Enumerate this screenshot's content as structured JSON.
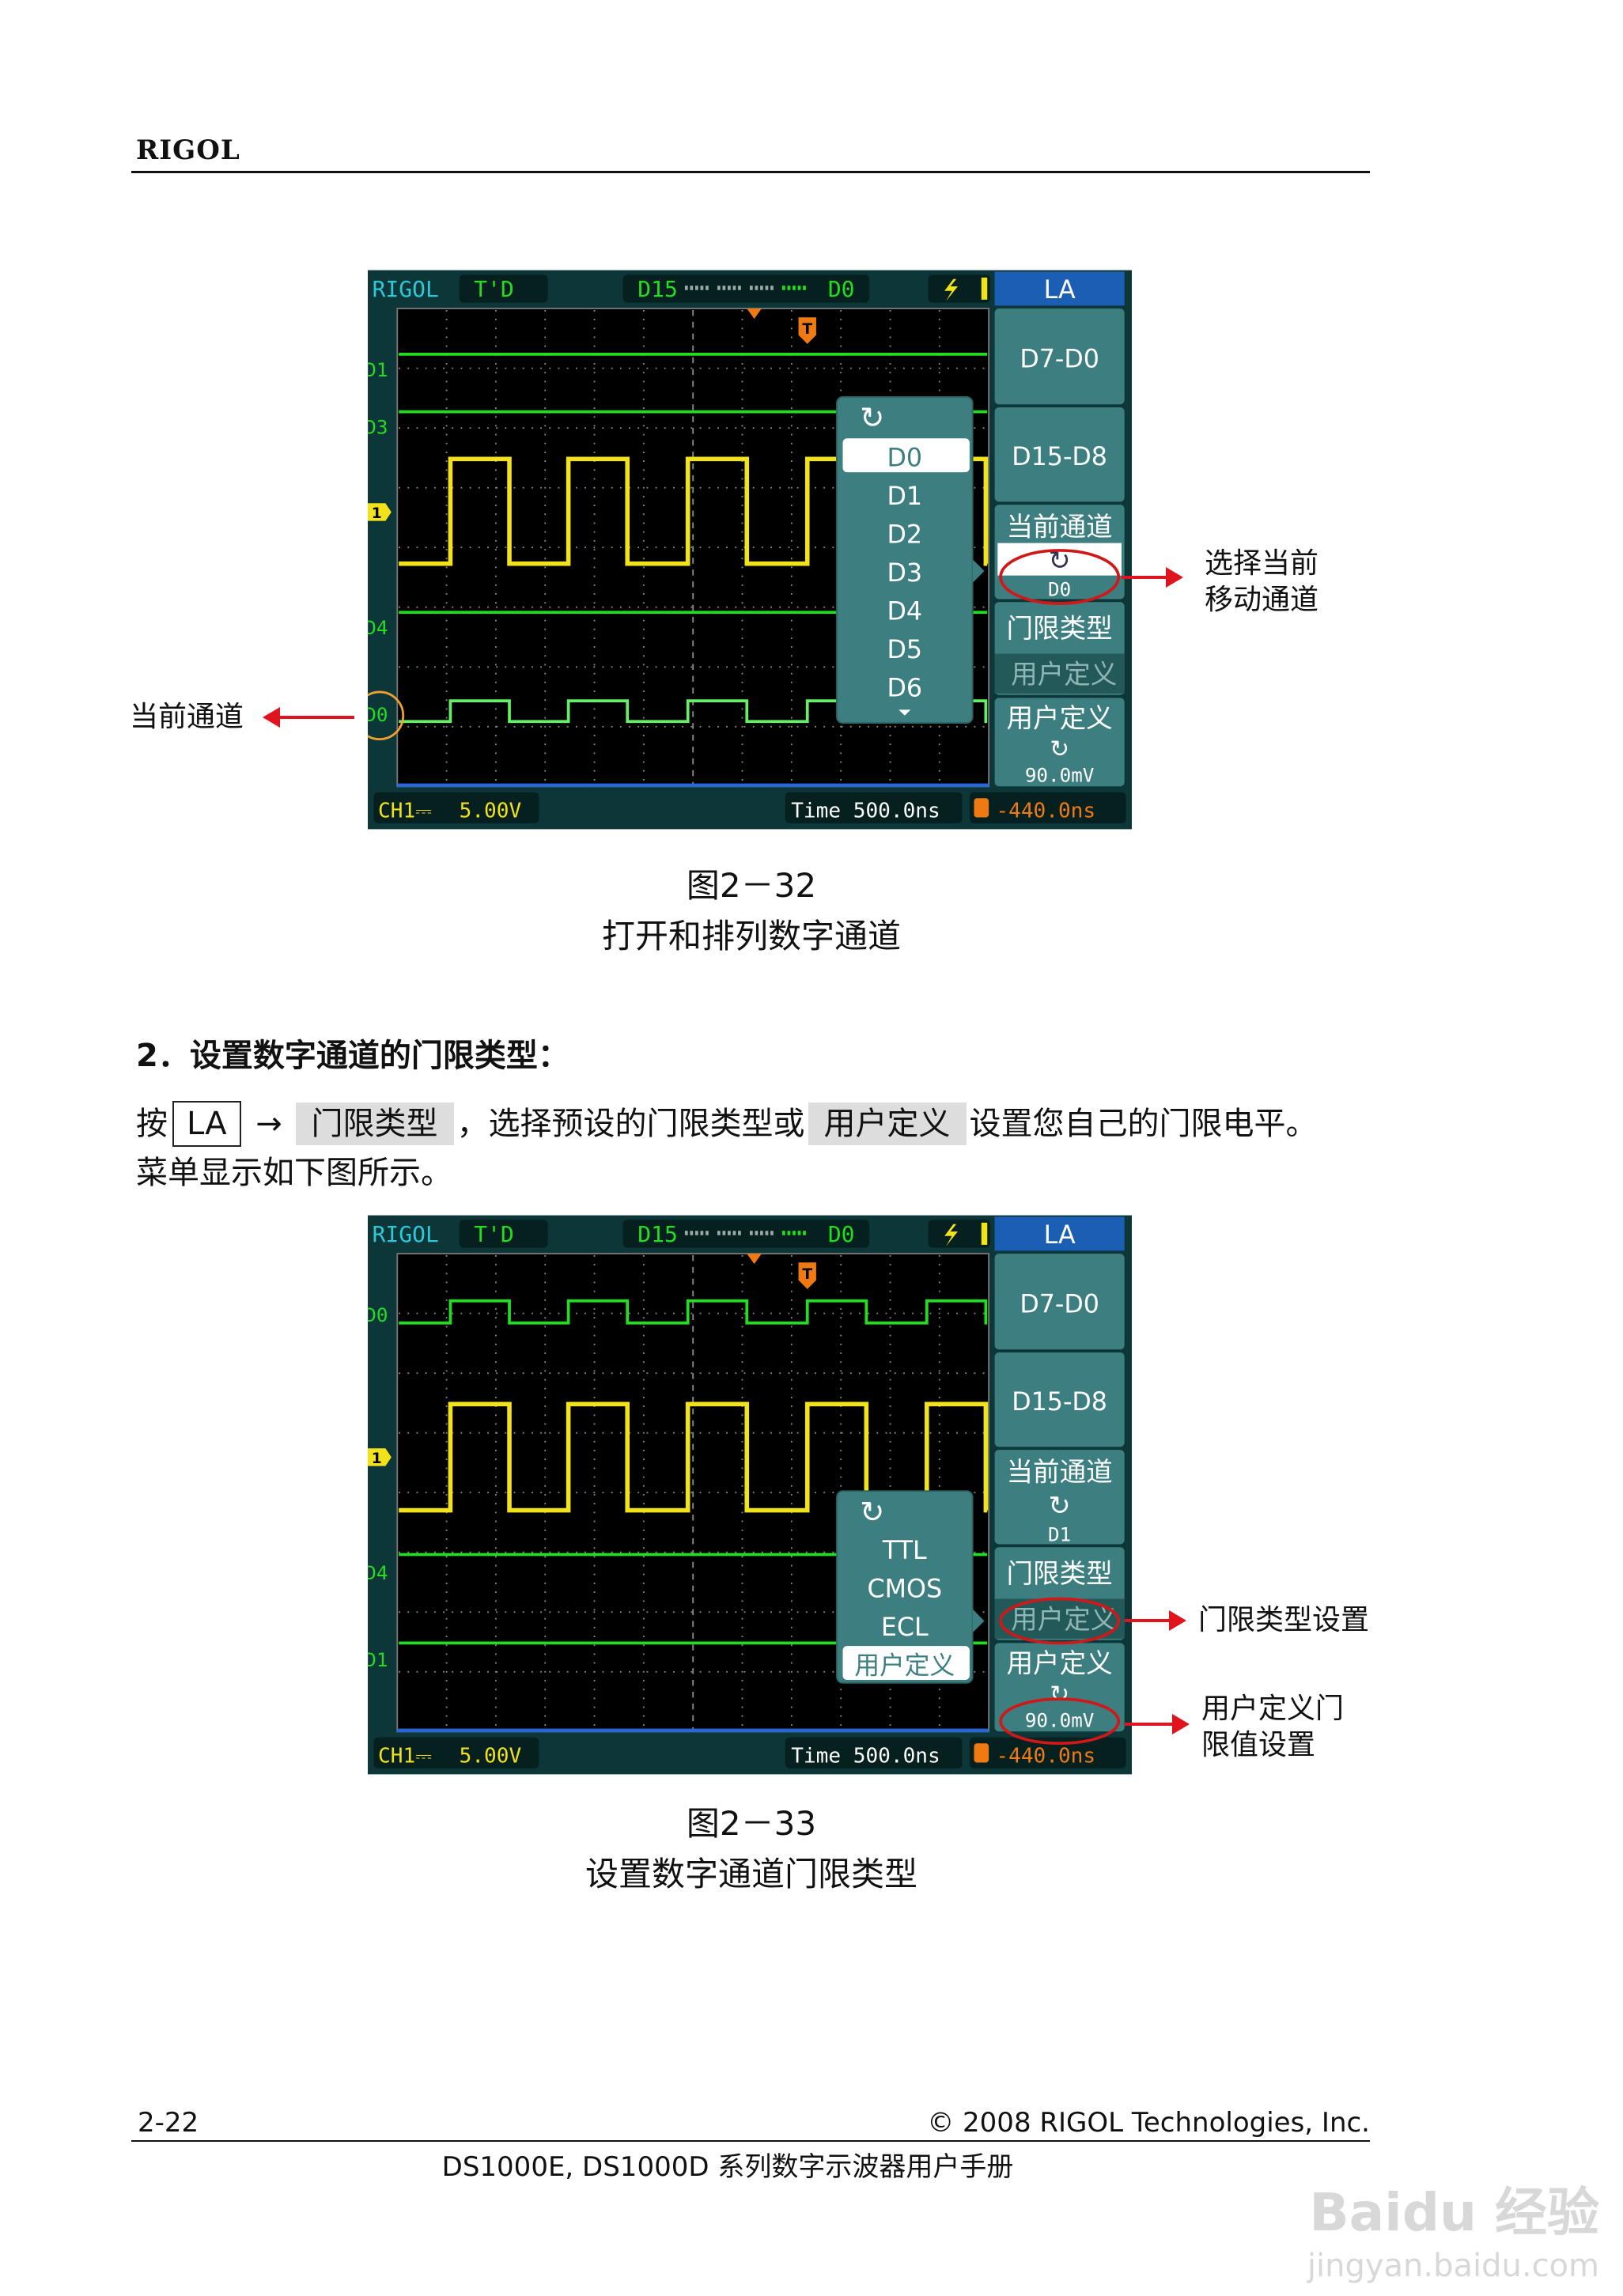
{
  "header": {
    "brand": "RIGOL"
  },
  "scope_common": {
    "brand": "RIGOL",
    "mode": "T'D",
    "ch_left": "D15",
    "ch_right": "D0",
    "menu_title": "LA",
    "btn_d7_d0": "D7-D0",
    "btn_d15_d8": "D15-D8",
    "btn_current_channel": "当前通道",
    "btn_threshold_type": "门限类型",
    "btn_user_defined": "用户定义",
    "ch1_label": "CH1",
    "ch1_scale": "5.00V",
    "time_label": "Time 500.0ns",
    "trigger_offset": "-440.0ns",
    "trigger_marker": "T",
    "ch1_marker": "1",
    "colors": {
      "digital": "#22dd22",
      "ch1": "#f2e21a",
      "menu": "#3d7f80",
      "title": "#1b5fb4",
      "trigger": "#f07a12",
      "highlight": "#d01818"
    }
  },
  "figures": [
    {
      "channel_labels": [
        "D1",
        "D3",
        "D4",
        "D0"
      ],
      "popup_items": [
        "D0",
        "D1",
        "D2",
        "D3",
        "D4",
        "D5",
        "D6"
      ],
      "popup_selected": 0,
      "current_channel_value": "D0",
      "threshold_value": "用户定义",
      "user_threshold_value": "90.0mV",
      "caption": "图2－32",
      "subtitle": "打开和排列数字通道",
      "annotations": [
        {
          "text": "选择当前\n移动通道"
        },
        {
          "text": "当前通道"
        }
      ]
    },
    {
      "channel_labels": [
        "D0",
        "D4",
        "D1"
      ],
      "popup_items": [
        "TTL",
        "CMOS",
        "ECL",
        "用户定义"
      ],
      "popup_selected": 3,
      "current_channel_value": "D1",
      "threshold_value": "用户定义",
      "user_threshold_value": "90.0mV",
      "caption": "图2－33",
      "subtitle": "设置数字通道门限类型",
      "annotations": [
        {
          "text": "门限类型设置"
        },
        {
          "text": "用户定义门\n限值设置"
        }
      ]
    }
  ],
  "section": {
    "heading": "2．设置数字通道的门限类型：",
    "p_press": "按",
    "p_key": "LA",
    "p_arrow": "→",
    "p_soft1": "门限类型",
    "p_mid": "，选择预设的门限类型或",
    "p_soft2": "用户定义",
    "p_end": "设置您自己的门限电平。",
    "p_line2": "菜单显示如下图所示。"
  },
  "footer": {
    "page": "2-22",
    "copyright": "© 2008 RIGOL Technologies, Inc.",
    "manual": "DS1000E, DS1000D 系列数字示波器用户手册"
  },
  "watermark": {
    "logo": "Baidu 经验",
    "url": "jingyan.baidu.com"
  }
}
